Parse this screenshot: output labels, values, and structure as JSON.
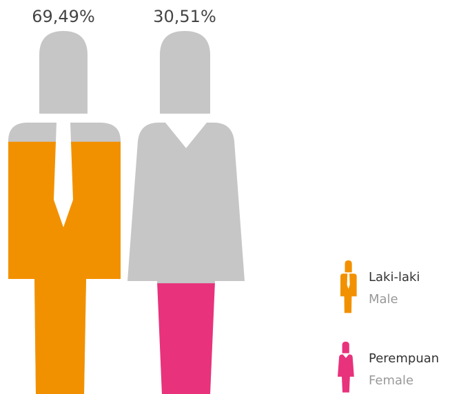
{
  "chart_data": {
    "type": "pictogram",
    "base_color": "#c6c6c6",
    "ylim": [
      0,
      100
    ],
    "series": [
      {
        "name": "Laki-laki",
        "name_en": "Male",
        "color": "#f29100",
        "values": [
          69.49
        ],
        "value_labels": [
          "69,49%"
        ]
      },
      {
        "name": "Perempuan",
        "name_en": "Female",
        "color": "#e8327c",
        "values": [
          30.51
        ],
        "value_labels": [
          "30,51%"
        ]
      }
    ]
  }
}
